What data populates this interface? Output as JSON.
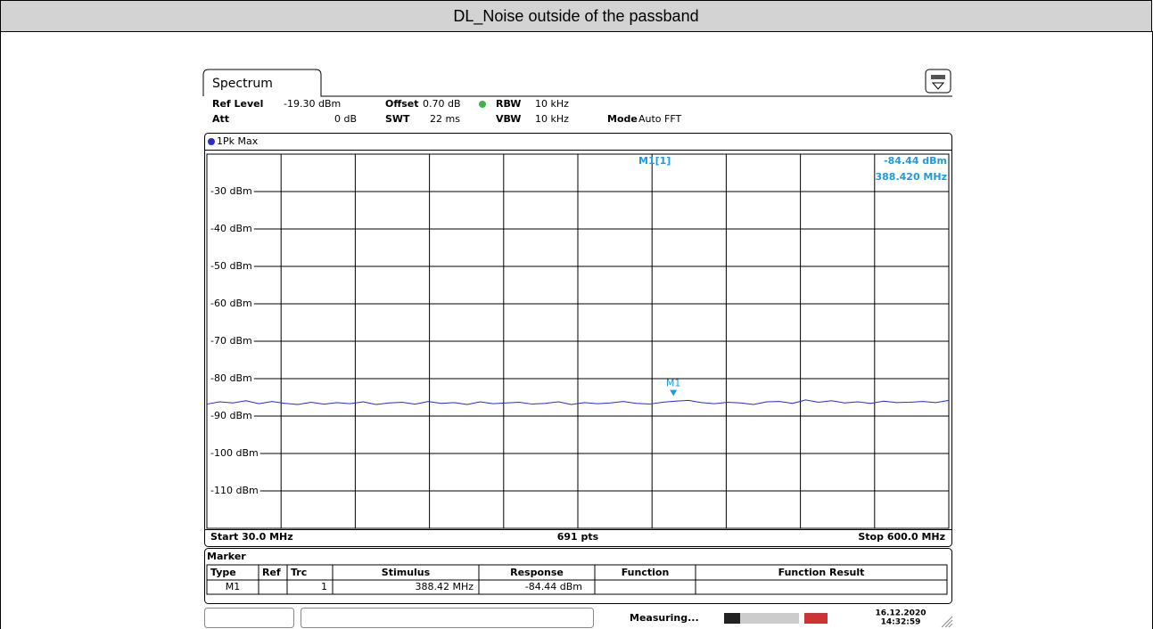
{
  "header": {
    "title": "DL_Noise outside of the passband"
  },
  "instrument": {
    "tab": "Spectrum",
    "settings": {
      "ref_level_label": "Ref Level",
      "ref_level": "-19.30 dBm",
      "offset_label": "Offset",
      "offset": "0.70 dB",
      "rbw_label": "RBW",
      "rbw": "10 kHz",
      "att_label": "Att",
      "att": "0 dB",
      "swt_label": "SWT",
      "swt": "22 ms",
      "vbw_label": "VBW",
      "vbw": "10 kHz",
      "mode_label": "Mode",
      "mode": "Auto FFT"
    },
    "trace_label": "1Pk Max",
    "start": "Start 30.0 MHz",
    "points": "691 pts",
    "stop": "Stop 600.0 MHz",
    "marker_table": {
      "title": "Marker",
      "headers": [
        "Type",
        "Ref",
        "Trc",
        "Stimulus",
        "Response",
        "Function",
        "Function Result"
      ],
      "row": {
        "type": "M1",
        "trc": "1",
        "stimulus": "388.42 MHz",
        "response": "-84.44 dBm"
      }
    },
    "status": {
      "state": "Measuring...",
      "date": "16.12.2020",
      "time": "14:32:59"
    }
  },
  "chart_data": {
    "type": "line",
    "x": [
      30,
      40,
      50,
      60,
      70,
      80,
      90,
      100,
      110,
      120,
      130,
      140,
      150,
      160,
      170,
      180,
      190,
      200,
      210,
      220,
      230,
      240,
      250,
      260,
      270,
      280,
      290,
      300,
      310,
      320,
      330,
      340,
      350,
      360,
      370,
      380,
      390,
      400,
      410,
      420,
      430,
      440,
      450,
      460,
      470,
      480,
      490,
      500,
      510,
      520,
      530,
      540,
      550,
      560,
      570,
      580,
      590,
      600
    ],
    "series": [
      {
        "name": "1Pk Max",
        "color": "#2a2ad0",
        "values": [
          -86.8,
          -86.2,
          -86.5,
          -85.9,
          -86.7,
          -86.1,
          -86.6,
          -86.9,
          -86.3,
          -86.8,
          -86.4,
          -86.7,
          -86.2,
          -86.9,
          -86.5,
          -86.3,
          -86.8,
          -86.1,
          -86.6,
          -86.4,
          -86.9,
          -86.2,
          -86.7,
          -86.5,
          -86.3,
          -86.8,
          -86.6,
          -86.2,
          -86.9,
          -86.4,
          -86.7,
          -86.5,
          -86.1,
          -86.6,
          -86.8,
          -86.3,
          -86.0,
          -85.8,
          -86.4,
          -86.7,
          -86.3,
          -86.5,
          -86.9,
          -86.2,
          -86.1,
          -86.6,
          -85.7,
          -86.3,
          -85.9,
          -86.5,
          -86.2,
          -86.6,
          -86.0,
          -86.4,
          -86.3,
          -86.1,
          -86.4,
          -85.8
        ]
      }
    ],
    "xlim": [
      30,
      600
    ],
    "xticks": [
      30,
      87,
      144,
      201,
      258,
      315,
      372,
      429,
      486,
      543,
      600
    ],
    "ylim": [
      -120,
      -20
    ],
    "yticks": [
      {
        "value": -30,
        "label": "-30 dBm"
      },
      {
        "value": -40,
        "label": "-40 dBm"
      },
      {
        "value": -50,
        "label": "-50 dBm"
      },
      {
        "value": -60,
        "label": "-60 dBm"
      },
      {
        "value": -70,
        "label": "-70 dBm"
      },
      {
        "value": -80,
        "label": "-80 dBm"
      },
      {
        "value": -90,
        "label": "-90 dBm"
      },
      {
        "value": -100,
        "label": "-100 dBm"
      },
      {
        "value": -110,
        "label": "-110 dBm"
      }
    ],
    "grid": true,
    "marker": {
      "label": "M1",
      "x": 388.42,
      "y": -84.44,
      "color": "#1e9be0",
      "readout_label": "M1[1]",
      "readout_value": "-84.44 dBm",
      "readout_freq": "388.420 MHz"
    }
  }
}
